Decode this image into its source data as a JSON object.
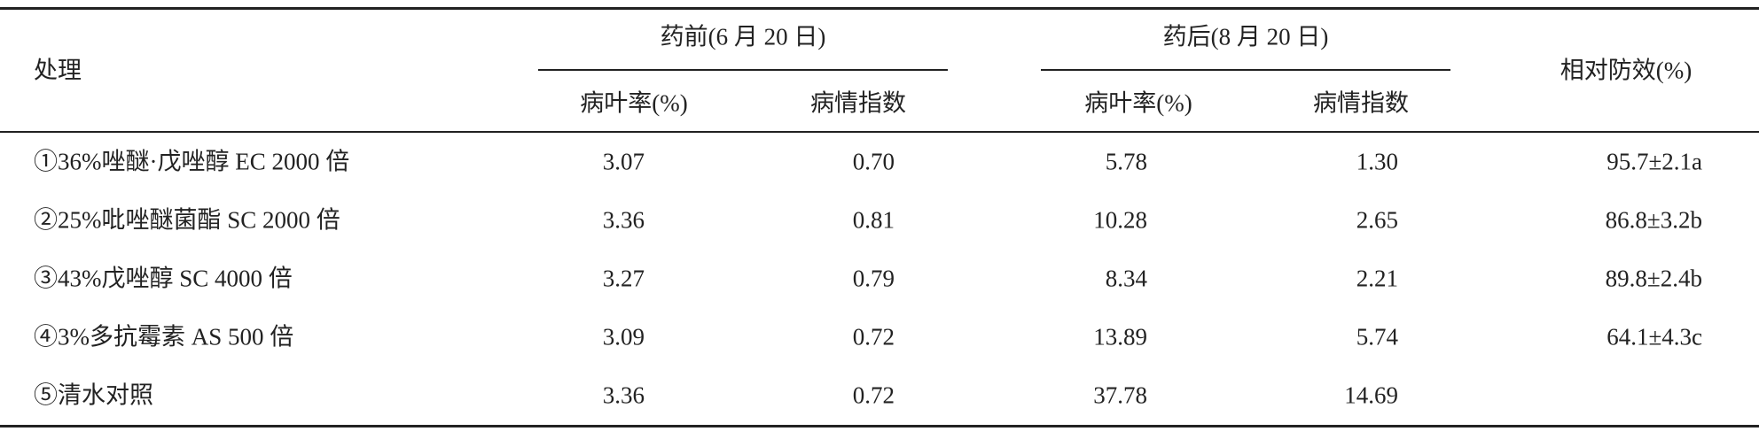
{
  "table": {
    "header": {
      "treatment": "处理",
      "before": "药前(6 月 20 日)",
      "after": "药后(8 月 20 日)",
      "efficacy": "相对防效(%)",
      "sub": [
        "病叶率(%)",
        "病情指数",
        "病叶率(%)",
        "病情指数"
      ]
    },
    "rows": [
      [
        "①36%唑醚·戊唑醇 EC 2000 倍",
        "3.07",
        "0.70",
        "5.78",
        "1.30",
        "95.7±2.1a"
      ],
      [
        "②25%吡唑醚菌酯 SC 2000 倍",
        "3.36",
        "0.81",
        "10.28",
        "2.65",
        "86.8±3.2b"
      ],
      [
        "③43%戊唑醇 SC 4000 倍",
        "3.27",
        "0.79",
        "8.34",
        "2.21",
        "89.8±2.4b"
      ],
      [
        "④3%多抗霉素 AS 500 倍",
        "3.09",
        "0.72",
        "13.89",
        "5.74",
        "64.1±4.3c"
      ],
      [
        "⑤清水对照",
        "3.36",
        "0.72",
        "37.78",
        "14.69"
      ]
    ]
  }
}
